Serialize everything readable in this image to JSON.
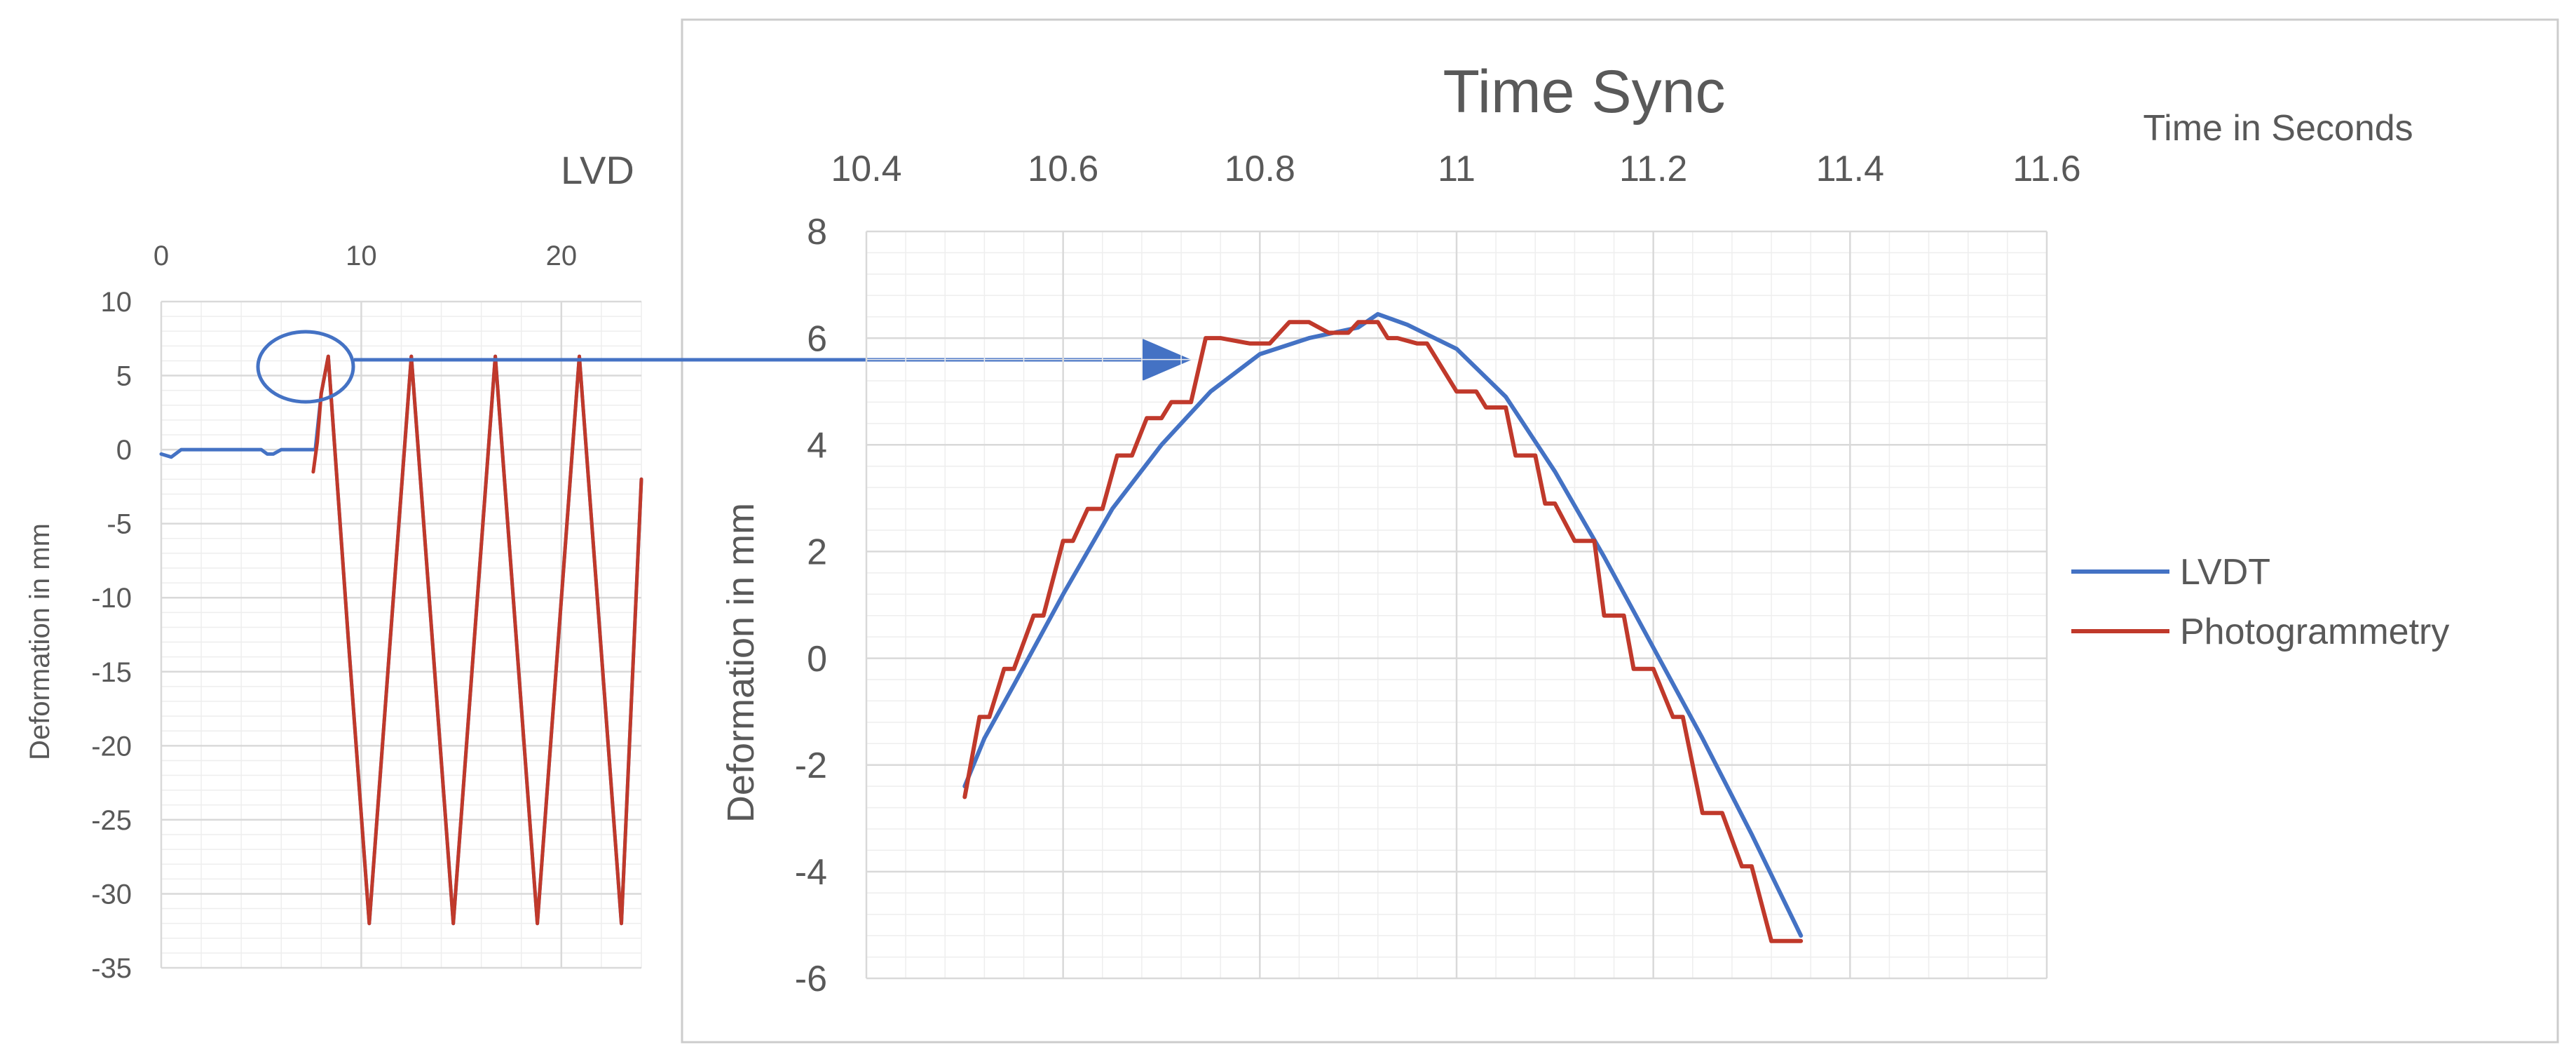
{
  "colors": {
    "lvdt": "#4472C4",
    "photogrammetry": "#C0392B",
    "grid_major": "#d9d9d9",
    "grid_minor": "#eeeeee",
    "text": "#595959",
    "frame": "#cccccc",
    "annotation": "#4472C4"
  },
  "chart_data": [
    {
      "type": "line",
      "name": "overview",
      "title": "LVD",
      "xlabel": "",
      "ylabel": "Deformation in mm",
      "x_axis_position": "top",
      "xlim": [
        0,
        24
      ],
      "ylim": [
        -35,
        10
      ],
      "x_ticks": [
        "0",
        "10",
        "20"
      ],
      "y_ticks": [
        "10",
        "5",
        "0",
        "-5",
        "-10",
        "-15",
        "-20",
        "-25",
        "-30",
        "-35"
      ],
      "grid": true,
      "series": [
        {
          "name": "LVDT",
          "color": "#4472C4",
          "x": [
            0,
            0.5,
            1,
            2,
            3,
            4,
            5,
            5.3,
            5.6,
            6,
            7,
            7.5,
            7.7,
            8.0,
            8.35,
            9.35,
            10.4,
            11.45,
            12.5,
            13.55,
            14.6,
            15.65,
            16.7,
            17.75,
            18.8,
            19.85,
            20.9,
            21.95,
            23.0,
            24
          ],
          "y": [
            -0.3,
            -0.5,
            0,
            0,
            0,
            0,
            0,
            -0.3,
            -0.3,
            0,
            0,
            0,
            0,
            3.8,
            6.3,
            -12.8,
            -32,
            -12.8,
            6.3,
            -12.8,
            -32,
            -12.8,
            6.3,
            -12.8,
            -32,
            -12.8,
            6.3,
            -12.8,
            -32,
            -2
          ]
        },
        {
          "name": "Photogrammetry",
          "color": "#C0392B",
          "x": [
            7.6,
            7.8,
            8.0,
            8.35,
            9.35,
            10.4,
            11.45,
            12.5,
            13.55,
            14.6,
            15.65,
            16.7,
            17.75,
            18.8,
            19.85,
            20.9,
            21.95,
            23.0,
            24
          ],
          "y": [
            -1.5,
            0.5,
            3.8,
            6.3,
            -12.8,
            -32,
            -12.8,
            6.3,
            -12.8,
            -32,
            -12.8,
            6.3,
            -12.8,
            -32,
            -12.8,
            6.3,
            -12.8,
            -32,
            -2
          ]
        }
      ]
    },
    {
      "type": "line",
      "name": "detail",
      "title": "Time Sync",
      "xlabel": "Time in Seconds",
      "ylabel": "Deformation in mm",
      "x_axis_position": "top",
      "xlim": [
        10.4,
        11.6
      ],
      "ylim": [
        -6,
        8
      ],
      "x_ticks": [
        "10.4",
        "10.6",
        "10.8",
        "11",
        "11.2",
        "11.4",
        "11.6"
      ],
      "y_ticks": [
        "8",
        "6",
        "4",
        "2",
        "0",
        "-2",
        "-4",
        "-6"
      ],
      "grid": true,
      "legend": "right",
      "series": [
        {
          "name": "LVDT",
          "color": "#4472C4",
          "x": [
            10.5,
            10.52,
            10.55,
            10.6,
            10.65,
            10.7,
            10.75,
            10.8,
            10.85,
            10.9,
            10.92,
            10.95,
            11.0,
            11.05,
            11.1,
            11.15,
            11.2,
            11.25,
            11.3,
            11.35
          ],
          "y": [
            -2.4,
            -1.5,
            -0.5,
            1.2,
            2.8,
            4.0,
            5.0,
            5.7,
            6.0,
            6.2,
            6.45,
            6.25,
            5.8,
            4.9,
            3.5,
            1.9,
            0.2,
            -1.5,
            -3.3,
            -5.2
          ]
        },
        {
          "name": "Photogrammetry",
          "color": "#C0392B",
          "x": [
            10.5,
            10.515,
            10.525,
            10.54,
            10.55,
            10.57,
            10.58,
            10.6,
            10.61,
            10.625,
            10.64,
            10.655,
            10.67,
            10.685,
            10.7,
            10.71,
            10.73,
            10.745,
            10.76,
            10.79,
            10.81,
            10.83,
            10.85,
            10.87,
            10.89,
            10.9,
            10.92,
            10.93,
            10.94,
            10.96,
            10.97,
            11.0,
            11.02,
            11.03,
            11.05,
            11.06,
            11.08,
            11.09,
            11.1,
            11.12,
            11.14,
            11.15,
            11.17,
            11.18,
            11.2,
            11.22,
            11.23,
            11.25,
            11.27,
            11.29,
            11.3,
            11.32,
            11.33,
            11.35
          ],
          "y": [
            -2.6,
            -1.1,
            -1.1,
            -0.2,
            -0.2,
            0.8,
            0.8,
            2.2,
            2.2,
            2.8,
            2.8,
            3.8,
            3.8,
            4.5,
            4.5,
            4.8,
            4.8,
            6.0,
            6.0,
            5.9,
            5.9,
            6.3,
            6.3,
            6.1,
            6.1,
            6.3,
            6.3,
            6.0,
            6.0,
            5.9,
            5.9,
            5.0,
            5.0,
            4.7,
            4.7,
            3.8,
            3.8,
            2.9,
            2.9,
            2.2,
            2.2,
            0.8,
            0.8,
            -0.2,
            -0.2,
            -1.1,
            -1.1,
            -2.9,
            -2.9,
            -3.9,
            -3.9,
            -5.3,
            -5.3,
            -5.3
          ]
        }
      ]
    }
  ]
}
